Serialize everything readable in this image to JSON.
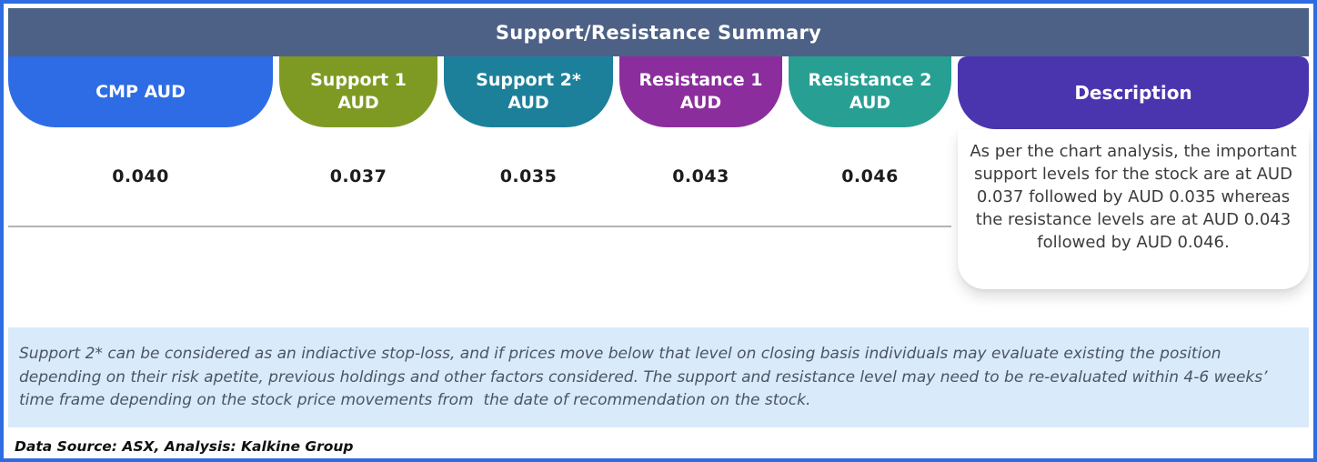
{
  "title": "Support/Resistance Summary",
  "columns": [
    {
      "label": "CMP AUD",
      "value": "0.040",
      "color": "#2d6ce4"
    },
    {
      "label": "Support 1\nAUD",
      "value": "0.037",
      "color": "#7f9a23"
    },
    {
      "label": "Support 2*\nAUD",
      "value": "0.035",
      "color": "#1d809a"
    },
    {
      "label": "Resistance 1\nAUD",
      "value": "0.043",
      "color": "#8c2d9d"
    },
    {
      "label": "Resistance 2\nAUD",
      "value": "0.046",
      "color": "#27a093"
    }
  ],
  "description": {
    "header": "Description",
    "header_color": "#4b35ae",
    "text": "As per the chart analysis, the important support levels for the stock are at AUD 0.037 followed by AUD 0.035 whereas the resistance levels are at AUD 0.043 followed by AUD 0.046."
  },
  "footnote": "Support 2* can be considered as an indiactive stop-loss, and if prices move below that level on closing basis individuals may evaluate existing the position depending on their risk apetite, previous holdings and other factors considered. The support and resistance level may need to be re-evaluated within 4-6 weeks’ time frame depending on the stock price movements from  the date of recommendation on the stock.",
  "source_line": "Data Source: ASX, Analysis: Kalkine Group",
  "colors": {
    "title_bar": "#4d6186",
    "frame_border": "#2e6ce0",
    "footnote_bg": "#d9eafa",
    "divider": "#b4b4b4"
  }
}
